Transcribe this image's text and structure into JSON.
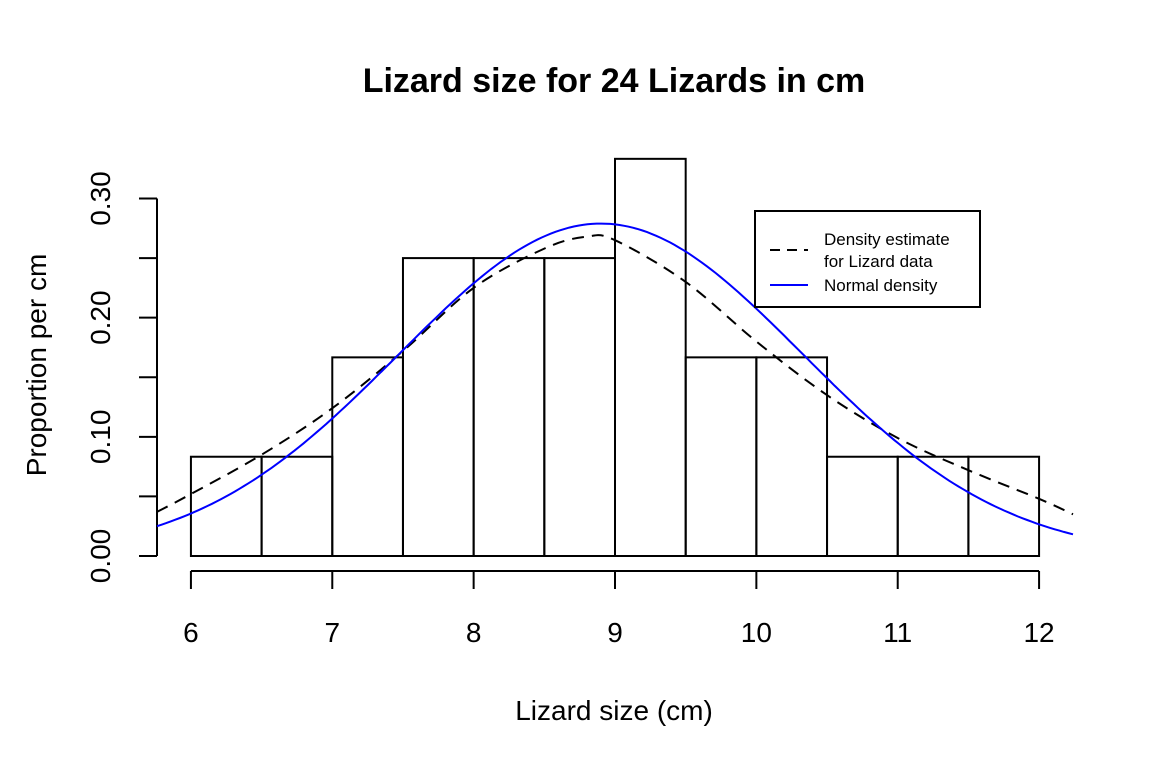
{
  "chart_data": {
    "type": "bar",
    "title": "Lizard size for 24 Lizards in cm",
    "xlabel": "Lizard size (cm)",
    "ylabel": "Proportion per cm",
    "xlim": [
      5.76,
      12.24
    ],
    "ylim": [
      0,
      0.334
    ],
    "x_ticks": [
      6,
      7,
      8,
      9,
      10,
      11,
      12
    ],
    "x_tick_labels": [
      "6",
      "7",
      "8",
      "9",
      "10",
      "11",
      "12"
    ],
    "y_ticks": [
      0,
      0.05,
      0.1,
      0.15,
      0.2,
      0.25,
      0.3
    ],
    "y_tick_labels": [
      "0.00",
      "",
      "0.10",
      "",
      "0.20",
      "",
      "0.30"
    ],
    "bins": [
      {
        "start": 6.0,
        "end": 6.5,
        "density": 0.0833
      },
      {
        "start": 6.5,
        "end": 7.0,
        "density": 0.0833
      },
      {
        "start": 7.0,
        "end": 7.5,
        "density": 0.1667
      },
      {
        "start": 7.5,
        "end": 8.0,
        "density": 0.25
      },
      {
        "start": 8.0,
        "end": 8.5,
        "density": 0.25
      },
      {
        "start": 8.5,
        "end": 9.0,
        "density": 0.25
      },
      {
        "start": 9.0,
        "end": 9.5,
        "density": 0.3333
      },
      {
        "start": 9.5,
        "end": 10.0,
        "density": 0.1667
      },
      {
        "start": 10.0,
        "end": 10.5,
        "density": 0.1667
      },
      {
        "start": 10.5,
        "end": 11.0,
        "density": 0.0833
      },
      {
        "start": 11.0,
        "end": 11.5,
        "density": 0.0833
      },
      {
        "start": 11.5,
        "end": 12.0,
        "density": 0.0833
      }
    ],
    "series": [
      {
        "name": "Density estimate\nfor Lizard data",
        "style": "dashed",
        "color": "#000000",
        "x": [
          5.76,
          6.0,
          6.5,
          7.0,
          7.5,
          8.0,
          8.5,
          8.8,
          9.0,
          9.5,
          10.0,
          10.5,
          11.0,
          11.5,
          12.0,
          12.24
        ],
        "y": [
          0.037,
          0.052,
          0.085,
          0.124,
          0.172,
          0.225,
          0.258,
          0.268,
          0.265,
          0.23,
          0.18,
          0.135,
          0.099,
          0.072,
          0.048,
          0.035
        ]
      },
      {
        "name": "Normal density",
        "style": "solid",
        "color": "#0000ff",
        "mean": 8.9,
        "sd": 1.43,
        "x_range": [
          5.76,
          12.24
        ]
      }
    ],
    "legend": {
      "position": "top-right",
      "entries": [
        {
          "lines": [
            "Density estimate",
            "for Lizard data"
          ],
          "style": "dashed",
          "color": "#000000"
        },
        {
          "lines": [
            "Normal density"
          ],
          "style": "solid",
          "color": "#0000ff"
        }
      ]
    },
    "grid": false
  }
}
